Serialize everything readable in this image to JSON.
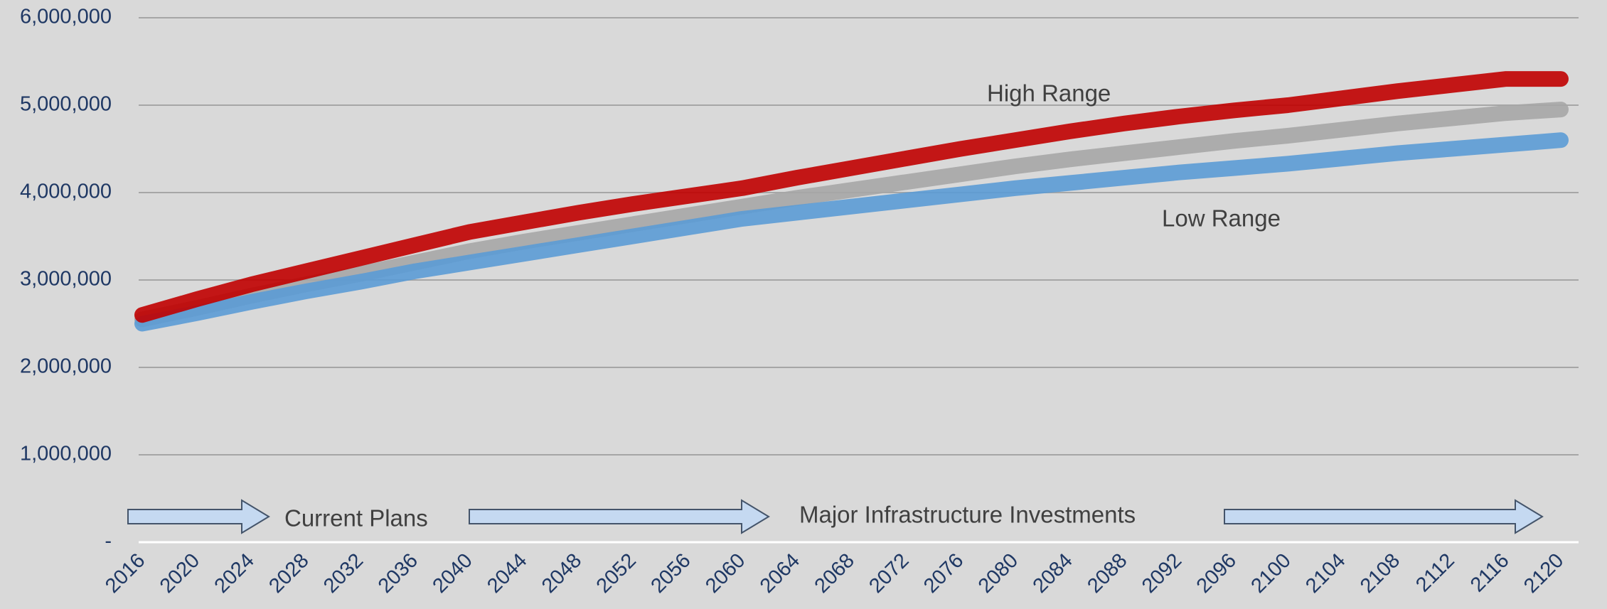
{
  "chart_data": {
    "type": "line",
    "x": [
      2016,
      2020,
      2024,
      2028,
      2032,
      2036,
      2040,
      2044,
      2048,
      2052,
      2056,
      2060,
      2064,
      2068,
      2072,
      2076,
      2080,
      2084,
      2088,
      2092,
      2096,
      2100,
      2104,
      2108,
      2112,
      2116,
      2120
    ],
    "xlim": [
      2016,
      2120
    ],
    "xticks": [
      2016,
      2020,
      2024,
      2028,
      2032,
      2036,
      2040,
      2044,
      2048,
      2052,
      2056,
      2060,
      2064,
      2068,
      2072,
      2076,
      2080,
      2084,
      2088,
      2092,
      2096,
      2100,
      2104,
      2108,
      2112,
      2116,
      2120
    ],
    "ylim": [
      0,
      6000000
    ],
    "yticks": [
      {
        "value": 0,
        "label": "-"
      },
      {
        "value": 1000000,
        "label": "1,000,000"
      },
      {
        "value": 2000000,
        "label": "2,000,000"
      },
      {
        "value": 3000000,
        "label": "3,000,000"
      },
      {
        "value": 4000000,
        "label": "4,000,000"
      },
      {
        "value": 5000000,
        "label": "5,000,000"
      },
      {
        "value": 6000000,
        "label": "6,000,000"
      }
    ],
    "grid": true,
    "series": [
      {
        "color": "#a6a6a6",
        "values": [
          2550000,
          2680000,
          2820000,
          2950000,
          3070000,
          3200000,
          3330000,
          3440000,
          3540000,
          3640000,
          3740000,
          3840000,
          3940000,
          4030000,
          4120000,
          4210000,
          4300000,
          4380000,
          4450000,
          4520000,
          4590000,
          4650000,
          4720000,
          4790000,
          4850000,
          4910000,
          4950000
        ]
      },
      {
        "color": "#5b9bd5",
        "values": [
          2500000,
          2620000,
          2750000,
          2870000,
          2980000,
          3100000,
          3200000,
          3300000,
          3400000,
          3500000,
          3600000,
          3700000,
          3770000,
          3840000,
          3910000,
          3980000,
          4050000,
          4110000,
          4170000,
          4230000,
          4280000,
          4330000,
          4390000,
          4450000,
          4500000,
          4550000,
          4600000
        ]
      },
      {
        "color": "#c00000",
        "values": [
          2600000,
          2780000,
          2950000,
          3100000,
          3250000,
          3400000,
          3550000,
          3660000,
          3770000,
          3870000,
          3960000,
          4050000,
          4170000,
          4280000,
          4390000,
          4500000,
          4600000,
          4700000,
          4790000,
          4870000,
          4940000,
          5000000,
          5080000,
          5160000,
          5230000,
          5300000,
          5300000
        ]
      }
    ],
    "annotations": [
      "High Range",
      "Low Range",
      "Current Plans",
      "Major Infrastructure Investments"
    ]
  }
}
